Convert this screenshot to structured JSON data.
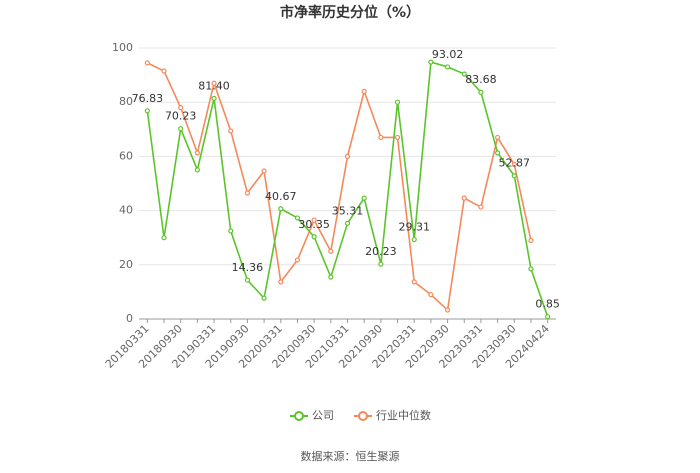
{
  "chart_data": {
    "type": "line",
    "title": "市净率历史分位（%）",
    "categories": [
      "20180331",
      null,
      "20180930",
      null,
      "20190331",
      null,
      "20190930",
      null,
      "20200331",
      null,
      "20200930",
      null,
      "20210331",
      null,
      "20210930",
      null,
      "20220331",
      null,
      "20220930",
      null,
      "20230331",
      null,
      "20230930",
      null,
      "20240424"
    ],
    "series": [
      {
        "name": "公司",
        "color": "#5cc42b",
        "values": [
          76.83,
          30,
          70.23,
          55,
          81.4,
          32.5,
          14.36,
          7.7,
          40.67,
          37.3,
          30.35,
          15.5,
          35.31,
          44.6,
          20.23,
          80,
          29.31,
          94.8,
          93.02,
          90.4,
          83.68,
          61.3,
          52.87,
          18.5,
          0.85
        ],
        "value_labels": [
          "76.83",
          null,
          "70.23",
          null,
          "81.40",
          null,
          "14.36",
          null,
          "40.67",
          null,
          "30.35",
          null,
          "35.31",
          null,
          "20.23",
          null,
          "29.31",
          null,
          "93.02",
          null,
          "83.68",
          null,
          "52.87",
          null,
          "0.85"
        ]
      },
      {
        "name": "行业中位数",
        "color": "#f5895a",
        "values": [
          94.5,
          91.5,
          78,
          61.3,
          87,
          69.4,
          46.5,
          54.6,
          13.7,
          21.8,
          36.5,
          25,
          60,
          84,
          67,
          67,
          13.7,
          9,
          3.3,
          44.6,
          41.3,
          67,
          57,
          29,
          null
        ]
      }
    ],
    "ylim": [
      0,
      100
    ],
    "yticks": [
      0,
      20,
      40,
      60,
      80,
      100
    ],
    "grid": true,
    "source": "数据来源：恒生聚源"
  }
}
